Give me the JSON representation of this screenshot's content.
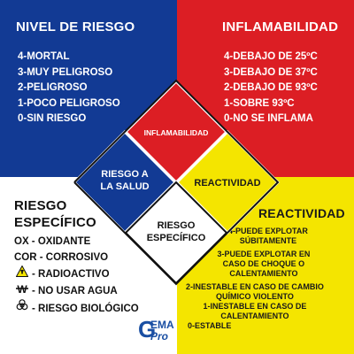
{
  "colors": {
    "blue": "#123a94",
    "red": "#dc1e24",
    "yellow": "#f4e500",
    "white": "#ffffff"
  },
  "blue": {
    "title": "NIVEL DE RIESGO",
    "items": [
      "4-MORTAL",
      "3-MUY PELIGROSO",
      "2-PELIGROSO",
      "1-POCO PELIGROSO",
      "0-SIN RIESGO"
    ]
  },
  "red": {
    "title": "INFLAMABILIDAD",
    "items": [
      "4-DEBAJO DE 25ºC",
      "3-DEBAJO DE 37ºC",
      "2-DEBAJO DE 93ºC",
      "1-SOBRE 93ºC",
      "0-NO SE INFLAMA"
    ]
  },
  "white": {
    "title_line1": "RIESGO",
    "title_line2": "ESPECÍFICO",
    "items": [
      "OX - OXIDANTE",
      "COR - CORROSIVO"
    ],
    "symbol_items": [
      {
        "icon": "radioactive-icon",
        "label": "- RADIOACTIVO"
      },
      {
        "icon": "no-water-icon",
        "label": "- NO USAR AGUA"
      },
      {
        "icon": "biohazard-icon",
        "label": "- RIESGO BIOLÓGICO"
      }
    ]
  },
  "yellow": {
    "title": "REACTIVIDAD",
    "items": [
      "4-PUEDE EXPLOTAR",
      "SÚBITAMENTE",
      "3-PUEDE EXPLOTAR EN",
      "CASO DE CHOQUE O",
      "CALENTAMIENTO",
      "2-INESTABLE EN CASO DE CAMBIO",
      "QUÍMICO VIOLENTO",
      "1-INESTABLE EN CASO DE",
      "CALENTAMIENTO",
      "0-ESTABLE"
    ]
  },
  "diamond": {
    "red_label": "INFLAMABILIDAD",
    "blue_label_line1": "RIESGO A",
    "blue_label_line2": "LA SALUD",
    "yellow_label": "REACTIVIDAD",
    "white_label_line1": "RIESGO",
    "white_label_line2": "ESPECÍFICO"
  },
  "logo": {
    "line1": "EMA",
    "line2": "Pro",
    "letter": "G"
  }
}
